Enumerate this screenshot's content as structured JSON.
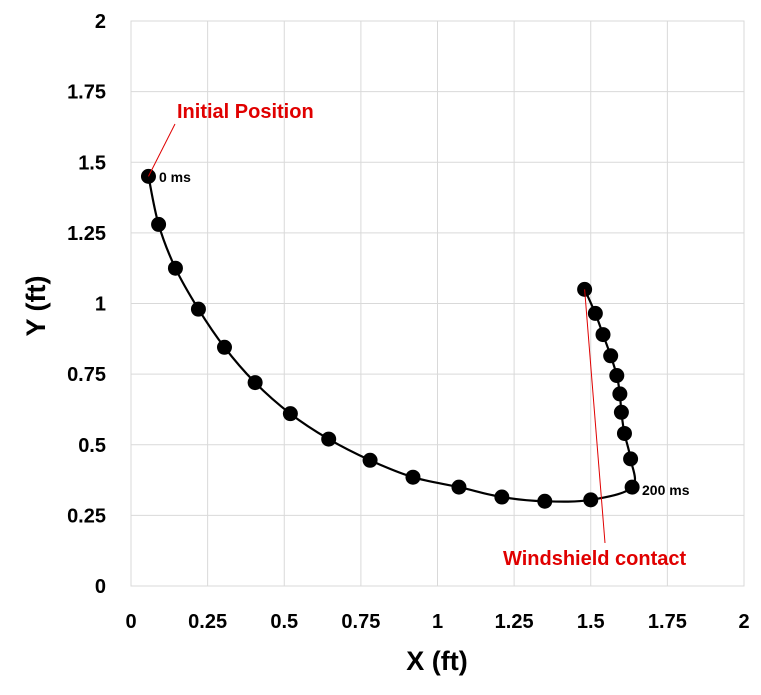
{
  "chart_data": {
    "type": "scatter",
    "xlabel": "X (ft)",
    "ylabel": "Y (ft)",
    "xlim": [
      0,
      2
    ],
    "ylim": [
      0,
      2
    ],
    "x_ticks": [
      "0",
      "0.25",
      "0.5",
      "0.75",
      "1",
      "1.25",
      "1.5",
      "1.75",
      "2"
    ],
    "y_ticks": [
      "0",
      "0.25",
      "0.5",
      "0.75",
      "1",
      "1.25",
      "1.5",
      "1.75",
      "2"
    ],
    "grid": true,
    "series": [
      {
        "points": [
          [
            0.057,
            1.45
          ],
          [
            0.09,
            1.28
          ],
          [
            0.145,
            1.125
          ],
          [
            0.22,
            0.98
          ],
          [
            0.305,
            0.845
          ],
          [
            0.405,
            0.72
          ],
          [
            0.52,
            0.61
          ],
          [
            0.645,
            0.52
          ],
          [
            0.78,
            0.445
          ],
          [
            0.92,
            0.385
          ],
          [
            1.07,
            0.35
          ],
          [
            1.21,
            0.315
          ],
          [
            1.35,
            0.3
          ],
          [
            1.5,
            0.305
          ],
          [
            1.635,
            0.35
          ],
          [
            1.63,
            0.45
          ],
          [
            1.61,
            0.54
          ],
          [
            1.6,
            0.615
          ],
          [
            1.595,
            0.68
          ],
          [
            1.585,
            0.745
          ],
          [
            1.565,
            0.815
          ],
          [
            1.54,
            0.89
          ],
          [
            1.515,
            0.965
          ],
          [
            1.48,
            1.05
          ]
        ],
        "color": "#000000"
      }
    ],
    "annotations": [
      {
        "text": "Initial Position",
        "x": 0.057,
        "y": 1.45,
        "color": "#e00000"
      },
      {
        "text": "0 ms",
        "x": 0.057,
        "y": 1.45,
        "color": "#000000"
      },
      {
        "text": "200 ms",
        "x": 1.635,
        "y": 0.35,
        "color": "#000000"
      },
      {
        "text": "Windshield contact",
        "x": 1.635,
        "y": 0.35,
        "color": "#e00000"
      }
    ]
  }
}
